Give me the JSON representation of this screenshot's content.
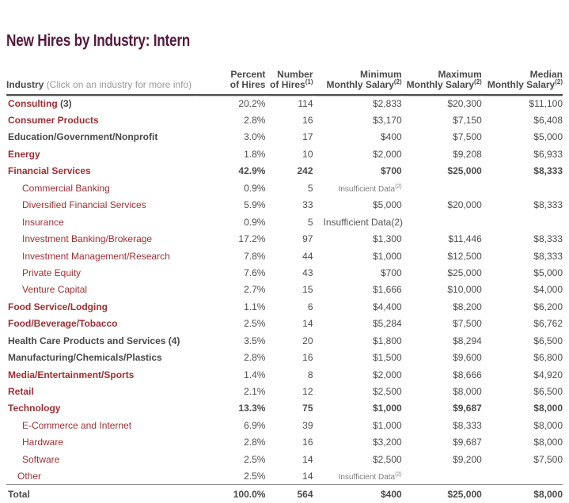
{
  "page": {
    "title": "New Hires by Industry: Intern"
  },
  "colors": {
    "title": "#541a3c",
    "industry_link": "#9c3033",
    "body_text": "#4d4d4d",
    "muted_text": "#9a9a9a",
    "rule_dark": "#4e4e4e",
    "rule_light": "#8f8f8f"
  },
  "table": {
    "header": {
      "industry_label": "Industry",
      "industry_note": "(Click on an industry for more info)",
      "columns": [
        {
          "id": "percent",
          "line1": "Percent",
          "line2": "of Hires",
          "sup": ""
        },
        {
          "id": "number",
          "line1": "Number",
          "line2": "of Hires",
          "sup": "(1)"
        },
        {
          "id": "min-monthly-salary",
          "line1": "Minimum",
          "line2": "Monthly Salary",
          "sup": "(2)"
        },
        {
          "id": "max-monthly-salary",
          "line1": "Maximum",
          "line2": "Monthly Salary",
          "sup": "(2)"
        },
        {
          "id": "median-monthly-salary",
          "line1": "Median",
          "line2": "Monthly Salary",
          "sup": "(2)"
        }
      ]
    },
    "insufficient": {
      "small_label": "Insufficient Data",
      "small_sup": "(2)",
      "inline_text": "Insufficient Data(2)"
    },
    "rows": [
      {
        "label": "Consulting",
        "suffix": "(3)",
        "level": "top",
        "link": true,
        "boldvals": false,
        "percent": "20.2%",
        "number": "114",
        "min": "$2,833",
        "max": "$20,300",
        "median": "$11,100"
      },
      {
        "label": "Consumer Products",
        "suffix": "",
        "level": "top",
        "link": true,
        "boldvals": false,
        "percent": "2.8%",
        "number": "16",
        "min": "$3,170",
        "max": "$7,150",
        "median": "$6,408"
      },
      {
        "label": "Education/Government/Nonprofit",
        "suffix": "",
        "level": "top",
        "link": false,
        "boldvals": false,
        "percent": "3.0%",
        "number": "17",
        "min": "$400",
        "max": "$7,500",
        "median": "$5,000"
      },
      {
        "label": "Energy",
        "suffix": "",
        "level": "top",
        "link": true,
        "boldvals": false,
        "percent": "1.8%",
        "number": "10",
        "min": "$2,000",
        "max": "$9,208",
        "median": "$6,933"
      },
      {
        "label": "Financial Services",
        "suffix": "",
        "level": "top",
        "link": true,
        "boldvals": true,
        "percent": "42.9%",
        "number": "242",
        "min": "$700",
        "max": "$25,000",
        "median": "$8,333"
      },
      {
        "label": "Commercial Banking",
        "suffix": "",
        "level": "sub",
        "link": true,
        "boldvals": false,
        "percent": "0.9%",
        "number": "5",
        "insufficient": "sup"
      },
      {
        "label": "Diversified Financial Services",
        "suffix": "",
        "level": "sub",
        "link": true,
        "boldvals": false,
        "percent": "5.9%",
        "number": "33",
        "min": "$5,000",
        "max": "$20,000",
        "median": "$8,333"
      },
      {
        "label": "Insurance",
        "suffix": "",
        "level": "sub",
        "link": true,
        "boldvals": false,
        "percent": "0.9%",
        "number": "5",
        "insufficient": "inline"
      },
      {
        "label": "Investment Banking/Brokerage",
        "suffix": "",
        "level": "sub",
        "link": true,
        "boldvals": false,
        "percent": "17.2%",
        "number": "97",
        "min": "$1,300",
        "max": "$11,446",
        "median": "$8,333"
      },
      {
        "label": "Investment Management/Research",
        "suffix": "",
        "level": "sub",
        "link": true,
        "boldvals": false,
        "percent": "7.8%",
        "number": "44",
        "min": "$1,000",
        "max": "$12,500",
        "median": "$8,333"
      },
      {
        "label": "Private Equity",
        "suffix": "",
        "level": "sub",
        "link": true,
        "boldvals": false,
        "percent": "7.6%",
        "number": "43",
        "min": "$700",
        "max": "$25,000",
        "median": "$5,000"
      },
      {
        "label": "Venture Capital",
        "suffix": "",
        "level": "sub",
        "link": true,
        "boldvals": false,
        "percent": "2.7%",
        "number": "15",
        "min": "$1,666",
        "max": "$10,000",
        "median": "$4,000"
      },
      {
        "label": "Food Service/Lodging",
        "suffix": "",
        "level": "top",
        "link": true,
        "boldvals": false,
        "percent": "1.1%",
        "number": "6",
        "min": "$4,400",
        "max": "$8,200",
        "median": "$6,200"
      },
      {
        "label": "Food/Beverage/Tobacco",
        "suffix": "",
        "level": "top",
        "link": true,
        "boldvals": false,
        "percent": "2.5%",
        "number": "14",
        "min": "$5,284",
        "max": "$7,500",
        "median": "$6,762"
      },
      {
        "label": "Health Care Products and Services (4)",
        "suffix": "",
        "level": "top",
        "link": false,
        "boldvals": false,
        "percent": "3.5%",
        "number": "20",
        "min": "$1,800",
        "max": "$8,294",
        "median": "$6,500"
      },
      {
        "label": "Manufacturing/Chemicals/Plastics",
        "suffix": "",
        "level": "top",
        "link": false,
        "boldvals": false,
        "percent": "2.8%",
        "number": "16",
        "min": "$1,500",
        "max": "$9,600",
        "median": "$6,800"
      },
      {
        "label": "Media/Entertainment/Sports",
        "suffix": "",
        "level": "top",
        "link": true,
        "boldvals": false,
        "percent": "1.4%",
        "number": "8",
        "min": "$2,000",
        "max": "$8,666",
        "median": "$4,920"
      },
      {
        "label": "Retail",
        "suffix": "",
        "level": "top",
        "link": true,
        "boldvals": false,
        "percent": "2.1%",
        "number": "12",
        "min": "$2,500",
        "max": "$8,000",
        "median": "$6,500"
      },
      {
        "label": "Technology",
        "suffix": "",
        "level": "top",
        "link": true,
        "boldvals": true,
        "percent": "13.3%",
        "number": "75",
        "min": "$1,000",
        "max": "$9,687",
        "median": "$8,000"
      },
      {
        "label": "E-Commerce and Internet",
        "suffix": "",
        "level": "sub",
        "link": true,
        "boldvals": false,
        "percent": "6.9%",
        "number": "39",
        "min": "$1,000",
        "max": "$8,333",
        "median": "$8,000"
      },
      {
        "label": "Hardware",
        "suffix": "",
        "level": "sub",
        "link": true,
        "boldvals": false,
        "percent": "2.8%",
        "number": "16",
        "min": "$3,200",
        "max": "$9,687",
        "median": "$8,000"
      },
      {
        "label": "Software",
        "suffix": "",
        "level": "sub",
        "link": true,
        "boldvals": false,
        "percent": "2.5%",
        "number": "14",
        "min": "$2,500",
        "max": "$9,200",
        "median": "$7,500"
      },
      {
        "label": "Other",
        "suffix": "",
        "level": "sub2",
        "link": true,
        "boldvals": false,
        "percent": "2.5%",
        "number": "14",
        "insufficient": "sup"
      }
    ],
    "total": {
      "label": "Total",
      "percent": "100.0%",
      "number": "564",
      "min": "$400",
      "max": "$25,000",
      "median": "$8,000"
    }
  }
}
